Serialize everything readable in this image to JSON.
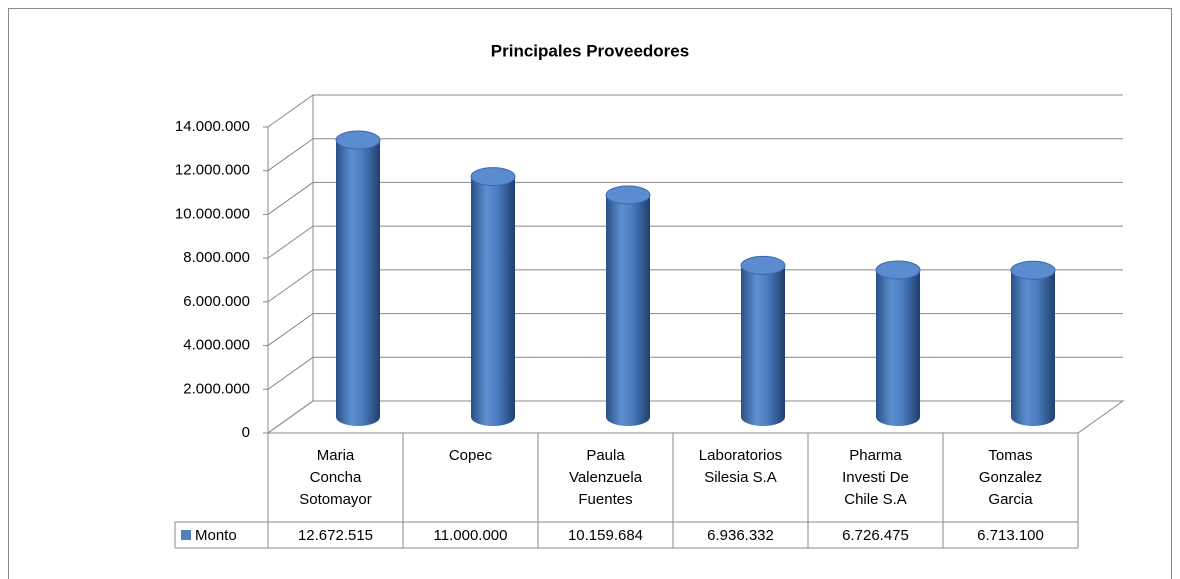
{
  "chart_data": {
    "type": "bar3d",
    "title": "Principales Proveedores",
    "categories": [
      "Maria Concha Sotomayor",
      "Copec",
      "Paula Valenzuela Fuentes",
      "Laboratorios Silesia S.A",
      "Pharma Investi De Chile S.A",
      "Tomas Gonzalez Garcia"
    ],
    "series": [
      {
        "name": "Monto",
        "color": "#4f81bd",
        "values": [
          12672515,
          11000000,
          10159684,
          6936332,
          6726475,
          6713100
        ],
        "value_labels": [
          "12.672.515",
          "11.000.000",
          "10.159.684",
          "6.936.332",
          "6.726.475",
          "6.713.100"
        ]
      }
    ],
    "ylim": [
      0,
      14000000
    ],
    "yticks": [
      0,
      {
        "value": 2000000,
        "label": "2.000.000"
      },
      {
        "value": 4000000,
        "label": "4.000.000"
      },
      {
        "value": 6000000,
        "label": "6.000.000"
      },
      {
        "value": 8000000,
        "label": "8.000.000"
      },
      {
        "value": 10000000,
        "label": "10.000.000"
      },
      {
        "value": 12000000,
        "label": "12.000.000"
      },
      {
        "value": 14000000,
        "label": "14.000.000"
      }
    ],
    "grid": true,
    "data_table": true
  }
}
